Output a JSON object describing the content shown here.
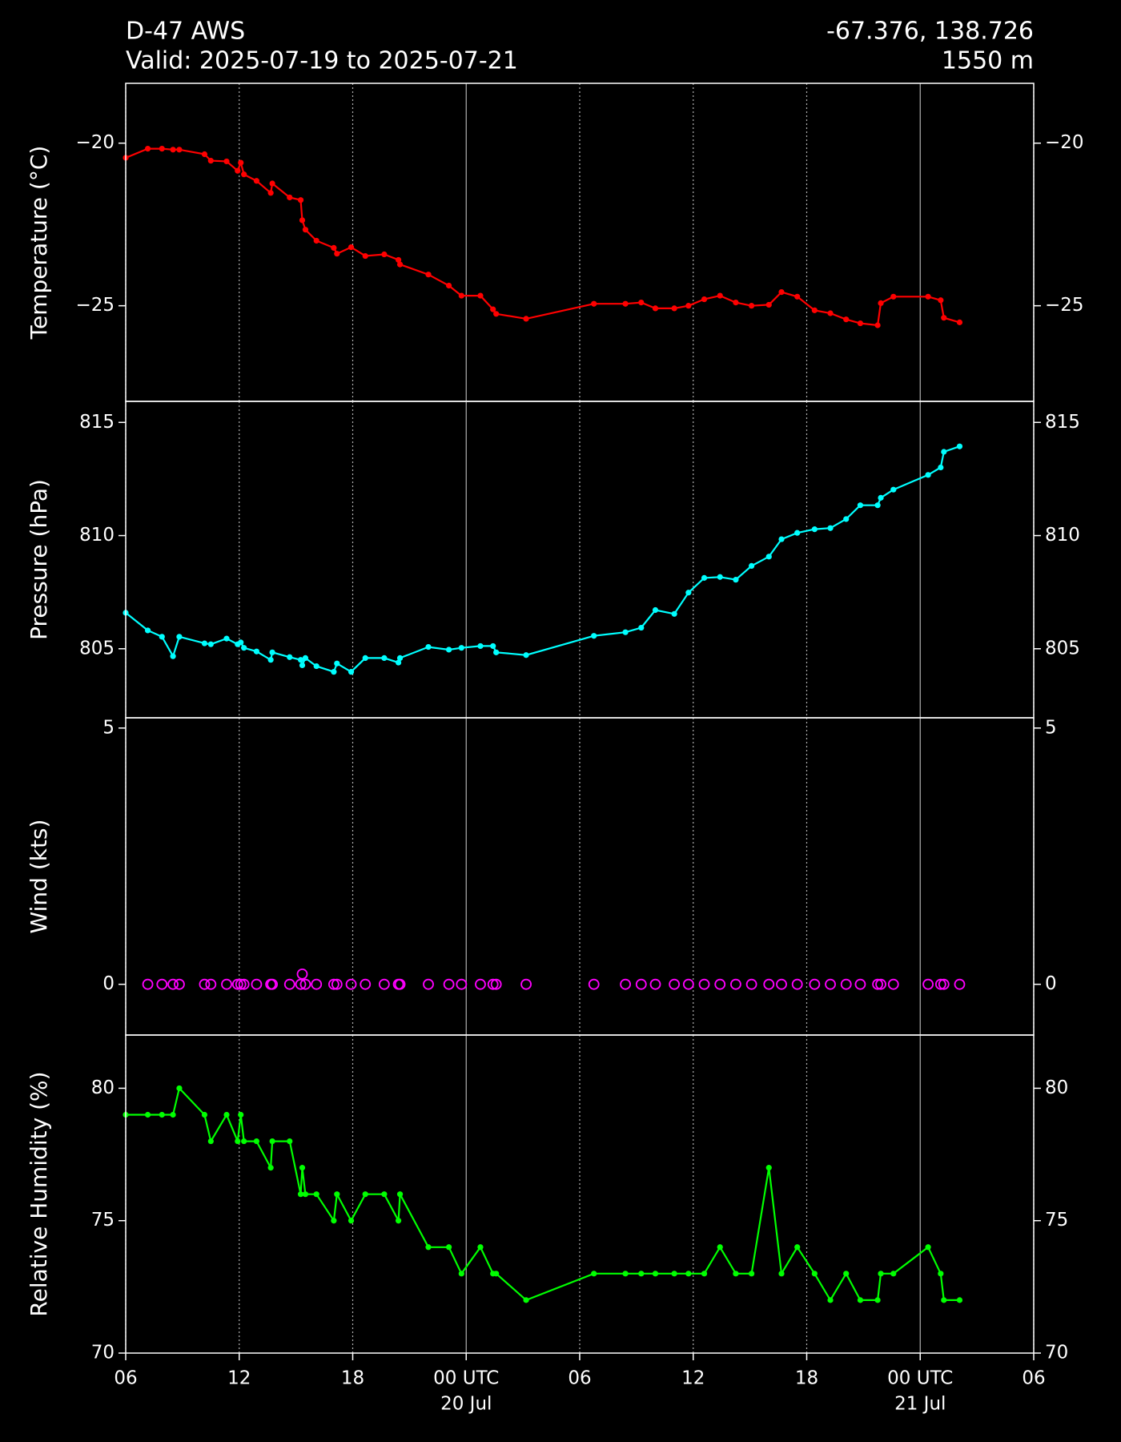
{
  "header": {
    "title": "D-47 AWS",
    "subtitle": "Valid: 2025-07-19 to 2025-07-21",
    "location": "-67.376, 138.726",
    "elevation": "1550 m"
  },
  "time_axis": {
    "xlim": [
      "2025-07-19T06:00",
      "2025-07-21T06:00"
    ],
    "xticks": [
      {
        "value": "2025-07-19T06:00",
        "label": "06"
      },
      {
        "value": "2025-07-19T12:00",
        "label": "12"
      },
      {
        "value": "2025-07-19T18:00",
        "label": "18"
      },
      {
        "value": "2025-07-20T00:00",
        "label": "00 UTC",
        "sublabel": "20 Jul"
      },
      {
        "value": "2025-07-20T06:00",
        "label": "06"
      },
      {
        "value": "2025-07-20T12:00",
        "label": "12"
      },
      {
        "value": "2025-07-20T18:00",
        "label": "18"
      },
      {
        "value": "2025-07-21T00:00",
        "label": "00 UTC",
        "sublabel": "21 Jul"
      },
      {
        "value": "2025-07-21T06:00",
        "label": "06"
      }
    ],
    "x": [
      "2025-07-19T06:00",
      "2025-07-19T07:10",
      "2025-07-19T07:55",
      "2025-07-19T08:30",
      "2025-07-19T08:50",
      "2025-07-19T10:10",
      "2025-07-19T10:30",
      "2025-07-19T11:20",
      "2025-07-19T11:55",
      "2025-07-19T12:05",
      "2025-07-19T12:15",
      "2025-07-19T12:55",
      "2025-07-19T13:40",
      "2025-07-19T13:45",
      "2025-07-19T14:40",
      "2025-07-19T15:15",
      "2025-07-19T15:20",
      "2025-07-19T15:30",
      "2025-07-19T16:05",
      "2025-07-19T17:00",
      "2025-07-19T17:10",
      "2025-07-19T17:55",
      "2025-07-19T18:40",
      "2025-07-19T19:40",
      "2025-07-19T20:25",
      "2025-07-19T20:30",
      "2025-07-19T22:00",
      "2025-07-19T23:05",
      "2025-07-19T23:45",
      "2025-07-20T00:45",
      "2025-07-20T01:25",
      "2025-07-20T01:35",
      "2025-07-20T03:10",
      "2025-07-20T06:45",
      "2025-07-20T08:25",
      "2025-07-20T09:15",
      "2025-07-20T10:00",
      "2025-07-20T11:00",
      "2025-07-20T11:45",
      "2025-07-20T12:35",
      "2025-07-20T13:25",
      "2025-07-20T14:15",
      "2025-07-20T15:05",
      "2025-07-20T16:00",
      "2025-07-20T16:40",
      "2025-07-20T17:30",
      "2025-07-20T18:25",
      "2025-07-20T19:15",
      "2025-07-20T20:05",
      "2025-07-20T20:50",
      "2025-07-20T21:45",
      "2025-07-20T21:55",
      "2025-07-20T22:35",
      "2025-07-21T00:25",
      "2025-07-21T01:05",
      "2025-07-21T01:15",
      "2025-07-21T02:05"
    ]
  },
  "chart_data": [
    {
      "type": "line",
      "ylabel": "Temperature (°C)",
      "ylim": [
        -27.94,
        -18.16
      ],
      "yticks": [
        {
          "value": -25,
          "label": "−25"
        },
        {
          "value": -20,
          "label": "−20"
        }
      ],
      "series": [
        {
          "color": "#ff0000",
          "values": [
            -20.45,
            -20.17,
            -20.17,
            -20.2,
            -20.2,
            -20.34,
            -20.54,
            -20.56,
            -20.85,
            -20.6,
            -20.96,
            -21.16,
            -21.53,
            -21.24,
            -21.67,
            -21.75,
            -22.37,
            -22.66,
            -23.0,
            -23.22,
            -23.4,
            -23.2,
            -23.47,
            -23.42,
            -23.59,
            -23.73,
            -24.04,
            -24.38,
            -24.69,
            -24.69,
            -25.11,
            -25.25,
            -25.4,
            -24.94,
            -24.94,
            -24.9,
            -25.08,
            -25.08,
            -25.0,
            -24.8,
            -24.69,
            -24.9,
            -25.0,
            -24.97,
            -24.58,
            -24.72,
            -25.14,
            -25.23,
            -25.42,
            -25.54,
            -25.6,
            -24.92,
            -24.72,
            -24.72,
            -24.83,
            -25.37,
            -25.51
          ]
        }
      ]
    },
    {
      "type": "line",
      "ylabel": "Pressure (hPa)",
      "ylim": [
        801.95,
        815.93
      ],
      "yticks": [
        805,
        810,
        815
      ],
      "series": [
        {
          "color": "#00ffff",
          "values": [
            806.59,
            805.81,
            805.53,
            804.67,
            805.53,
            805.24,
            805.2,
            805.45,
            805.2,
            805.28,
            805.04,
            804.88,
            804.51,
            804.84,
            804.63,
            804.51,
            804.27,
            804.59,
            804.23,
            803.98,
            804.35,
            803.98,
            804.59,
            804.59,
            804.39,
            804.59,
            805.08,
            804.96,
            805.04,
            805.12,
            805.12,
            804.84,
            804.72,
            805.57,
            805.73,
            805.93,
            806.71,
            806.54,
            807.48,
            808.13,
            808.17,
            808.05,
            808.66,
            809.07,
            809.84,
            810.12,
            810.28,
            810.33,
            810.73,
            811.34,
            811.34,
            811.67,
            812.03,
            812.68,
            813.01,
            813.7,
            813.94
          ]
        }
      ]
    },
    {
      "type": "scatter",
      "ylabel": "Wind (kts)",
      "ylim": [
        -0.99,
        5.2
      ],
      "yticks": [
        0,
        5
      ],
      "series": [
        {
          "color": "#ff00ff",
          "values": [
            null,
            0,
            0,
            0,
            0,
            0,
            0,
            0,
            0,
            0,
            0,
            0,
            0,
            0,
            0,
            0,
            0.2,
            0,
            0,
            0,
            0,
            0,
            0,
            0,
            0,
            0,
            0,
            0,
            0,
            0,
            0,
            0,
            0,
            0,
            0,
            0,
            0,
            0,
            0,
            0,
            0,
            0,
            0,
            0,
            0,
            0,
            0,
            0,
            0,
            0,
            0,
            0,
            0,
            0,
            0,
            0,
            0
          ]
        }
      ]
    },
    {
      "type": "line",
      "ylabel": "Relative Humidity (%)",
      "ylim": [
        70,
        82.01
      ],
      "yticks": [
        70,
        75,
        80
      ],
      "series": [
        {
          "color": "#00ff00",
          "values": [
            79,
            79,
            79,
            79,
            80,
            79,
            78,
            79,
            78,
            79,
            78,
            78,
            77,
            78,
            78,
            76,
            77,
            76,
            76,
            75,
            76,
            75,
            76,
            76,
            75,
            76,
            74,
            74,
            73,
            74,
            73,
            73,
            72,
            73,
            73,
            73,
            73,
            73,
            73,
            73,
            74,
            73,
            73,
            77,
            73,
            74,
            73,
            72,
            73,
            72,
            72,
            73,
            73,
            74,
            73,
            72,
            72
          ]
        }
      ]
    }
  ]
}
